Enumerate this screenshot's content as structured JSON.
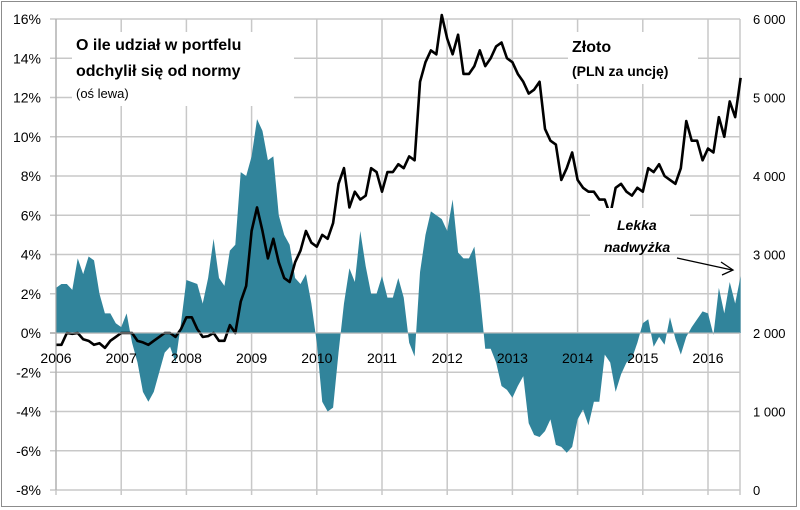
{
  "chart_data": {
    "type": "area",
    "title": "",
    "x_start": "2006-01",
    "x_step": "month",
    "x_tick_labels": [
      "2006",
      "2007",
      "2008",
      "2009",
      "2010",
      "2011",
      "2012",
      "2013",
      "2014",
      "2015",
      "2016"
    ],
    "left_axis": {
      "min": -8,
      "max": 16,
      "step": 2,
      "tick_labels": [
        "-8%",
        "-6%",
        "-4%",
        "-2%",
        "0%",
        "2%",
        "4%",
        "6%",
        "8%",
        "10%",
        "12%",
        "14%",
        "16%"
      ]
    },
    "right_axis": {
      "min": 0,
      "max": 6000,
      "step": 1000,
      "tick_labels": [
        "0",
        "1 000",
        "2 000",
        "3 000",
        "4 000",
        "5 000",
        "6 000"
      ]
    },
    "grid": true,
    "series": [
      {
        "name": "O ile udział w portfelu odchylił się od normy",
        "axis": "left",
        "type": "area",
        "color": "#31849b",
        "values": [
          2.3,
          2.5,
          2.5,
          2.2,
          3.8,
          3.0,
          3.9,
          3.7,
          2.0,
          1.0,
          1.0,
          0.5,
          0.3,
          1.0,
          -0.5,
          -1.5,
          -3.0,
          -3.5,
          -3.0,
          -2.0,
          -1.0,
          -0.7,
          -1.5,
          0.5,
          2.7,
          2.6,
          2.5,
          1.5,
          2.8,
          4.8,
          2.8,
          2.4,
          4.2,
          4.5,
          8.2,
          8.0,
          9.0,
          10.9,
          10.3,
          8.8,
          9.0,
          6.0,
          5.0,
          4.5,
          2.8,
          2.5,
          3.0,
          1.5,
          -0.5,
          -3.5,
          -4.0,
          -3.8,
          -1.0,
          1.5,
          3.3,
          2.6,
          5.2,
          3.4,
          2.0,
          2.0,
          2.9,
          1.8,
          1.8,
          2.8,
          1.8,
          -0.5,
          -1.2,
          3.1,
          5.0,
          6.2,
          6.0,
          5.8,
          5.2,
          6.8,
          4.1,
          3.8,
          3.8,
          4.4,
          2.0,
          -0.8,
          -0.8,
          -1.5,
          -2.7,
          -2.9,
          -3.3,
          -2.7,
          -2.2,
          -4.6,
          -5.2,
          -5.3,
          -5.0,
          -4.4,
          -5.7,
          -5.8,
          -6.1,
          -5.8,
          -4.4,
          -3.9,
          -4.7,
          -3.5,
          -3.5,
          -1.1,
          -1.5,
          -3.0,
          -2.1,
          -1.5,
          -1.3,
          -0.5,
          0.5,
          0.7,
          -0.7,
          -0.2,
          -0.6,
          0.8,
          -0.3,
          -1.1,
          -0.2,
          0.3,
          0.7,
          1.1,
          1.0,
          -0.1,
          2.3,
          1.0,
          2.6,
          1.5,
          2.9
        ]
      },
      {
        "name": "Złoto (PLN za uncję)",
        "axis": "right",
        "type": "line",
        "color": "#000000",
        "values": [
          1850,
          1850,
          2000,
          1990,
          2000,
          1920,
          1900,
          1850,
          1870,
          1810,
          1900,
          1950,
          2000,
          2000,
          2000,
          1900,
          1880,
          1850,
          1900,
          1950,
          2000,
          2000,
          1950,
          2050,
          2200,
          2200,
          2050,
          1950,
          1960,
          2000,
          1900,
          1900,
          2100,
          2000,
          2400,
          2600,
          3300,
          3600,
          3300,
          2950,
          3200,
          2900,
          2700,
          2650,
          2900,
          3050,
          3300,
          3150,
          3100,
          3250,
          3200,
          3400,
          3900,
          4100,
          3600,
          3800,
          3700,
          3750,
          4100,
          4050,
          3800,
          4050,
          4050,
          4150,
          4100,
          4250,
          4200,
          5200,
          5450,
          5600,
          5550,
          6050,
          5750,
          5550,
          5800,
          5300,
          5300,
          5400,
          5600,
          5400,
          5500,
          5650,
          5700,
          5500,
          5450,
          5300,
          5200,
          5050,
          5100,
          5200,
          4600,
          4450,
          4400,
          3950,
          4100,
          4300,
          3950,
          3850,
          3800,
          3800,
          3700,
          3700,
          3500,
          3850,
          3900,
          3800,
          3750,
          3850,
          3800,
          4100,
          4050,
          4150,
          4000,
          3950,
          3900,
          4100,
          4700,
          4450,
          4450,
          4200,
          4350,
          4300,
          4750,
          4500,
          4950,
          4750,
          5250
        ]
      }
    ],
    "annotations": {
      "left_title_line1": "O ile udział w portfelu",
      "left_title_line2": "odchylił się od normy",
      "left_title_note": "(oś lewa)",
      "right_title": "Złoto",
      "right_title_note": "(PLN za uncję)",
      "callout_line1": "Lekka",
      "callout_line2": "nadwyżka"
    }
  }
}
